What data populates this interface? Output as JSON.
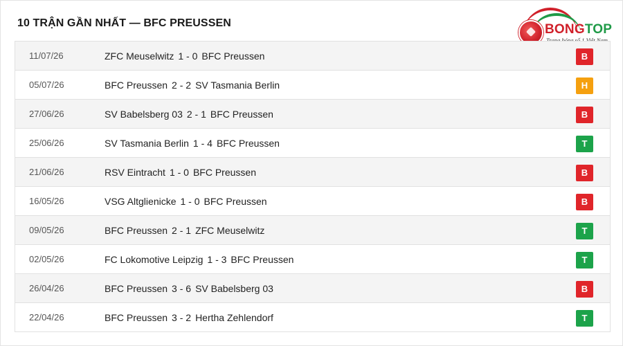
{
  "header": {
    "title": "10 TRẬN GẦN NHẤT — BFC PREUSSEN"
  },
  "logo": {
    "brand_part1": "BONG",
    "brand_part2": "TOP",
    "tagline": "Trang bóng số 1 Việt Nam"
  },
  "colors": {
    "loss": "#e0252a",
    "draw": "#f5a00f",
    "win": "#1ca34a",
    "brand_red": "#d0202a",
    "brand_green": "#1f9a47"
  },
  "matches": [
    {
      "date": "11/07/26",
      "home": "ZFC Meuselwitz",
      "score": "1 - 0",
      "away": "BFC Preussen",
      "result": "B"
    },
    {
      "date": "05/07/26",
      "home": "BFC Preussen",
      "score": "2 - 2",
      "away": "SV Tasmania Berlin",
      "result": "H"
    },
    {
      "date": "27/06/26",
      "home": "SV Babelsberg 03",
      "score": "2 - 1",
      "away": "BFC Preussen",
      "result": "B"
    },
    {
      "date": "25/06/26",
      "home": "SV Tasmania Berlin",
      "score": "1 - 4",
      "away": "BFC Preussen",
      "result": "T"
    },
    {
      "date": "21/06/26",
      "home": "RSV Eintracht",
      "score": "1 - 0",
      "away": "BFC Preussen",
      "result": "B"
    },
    {
      "date": "16/05/26",
      "home": "VSG Altglienicke",
      "score": "1 - 0",
      "away": "BFC Preussen",
      "result": "B"
    },
    {
      "date": "09/05/26",
      "home": "BFC Preussen",
      "score": "2 - 1",
      "away": "ZFC Meuselwitz",
      "result": "T"
    },
    {
      "date": "02/05/26",
      "home": "FC Lokomotive Leipzig",
      "score": "1 - 3",
      "away": "BFC Preussen",
      "result": "T"
    },
    {
      "date": "26/04/26",
      "home": "BFC Preussen",
      "score": "3 - 6",
      "away": "SV Babelsberg 03",
      "result": "B"
    },
    {
      "date": "22/04/26",
      "home": "BFC Preussen",
      "score": "3 - 2",
      "away": "Hertha Zehlendorf",
      "result": "T"
    }
  ]
}
